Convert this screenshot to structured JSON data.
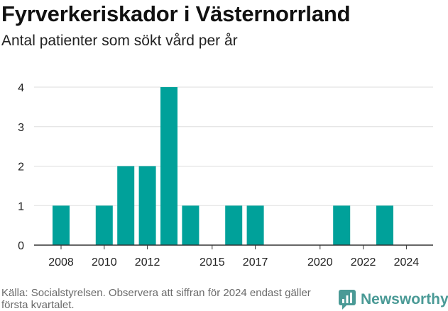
{
  "header": {
    "title": "Fyrverkeriskador i Västernorrland",
    "subtitle": "Antal patienter som sökt vård per år"
  },
  "footer": {
    "source": "Källa: Socialstyrelsen. Observera att siffran för 2024 endast gäller första kvartalet.",
    "brand": "Newsworthy"
  },
  "colors": {
    "bar": "#00a19a",
    "grid": "#dddddd",
    "axis": "#333333",
    "brand": "#4a9a96"
  },
  "chart_data": {
    "type": "bar",
    "title": "Fyrverkeriskador i Västernorrland",
    "subtitle": "Antal patienter som sökt vård per år",
    "xlabel": "",
    "ylabel": "",
    "x": [
      2008,
      2009,
      2010,
      2011,
      2012,
      2013,
      2014,
      2015,
      2016,
      2017,
      2018,
      2019,
      2020,
      2021,
      2022,
      2023,
      2024
    ],
    "values": [
      1,
      0,
      1,
      2,
      2,
      4,
      1,
      0,
      1,
      1,
      0,
      0,
      0,
      1,
      0,
      1,
      0
    ],
    "x_ticks": [
      2008,
      2010,
      2012,
      2015,
      2017,
      2020,
      2022,
      2024
    ],
    "y_ticks": [
      0,
      1,
      2,
      3,
      4
    ],
    "ylim": [
      0,
      4
    ],
    "grid": true,
    "legend": "none"
  }
}
